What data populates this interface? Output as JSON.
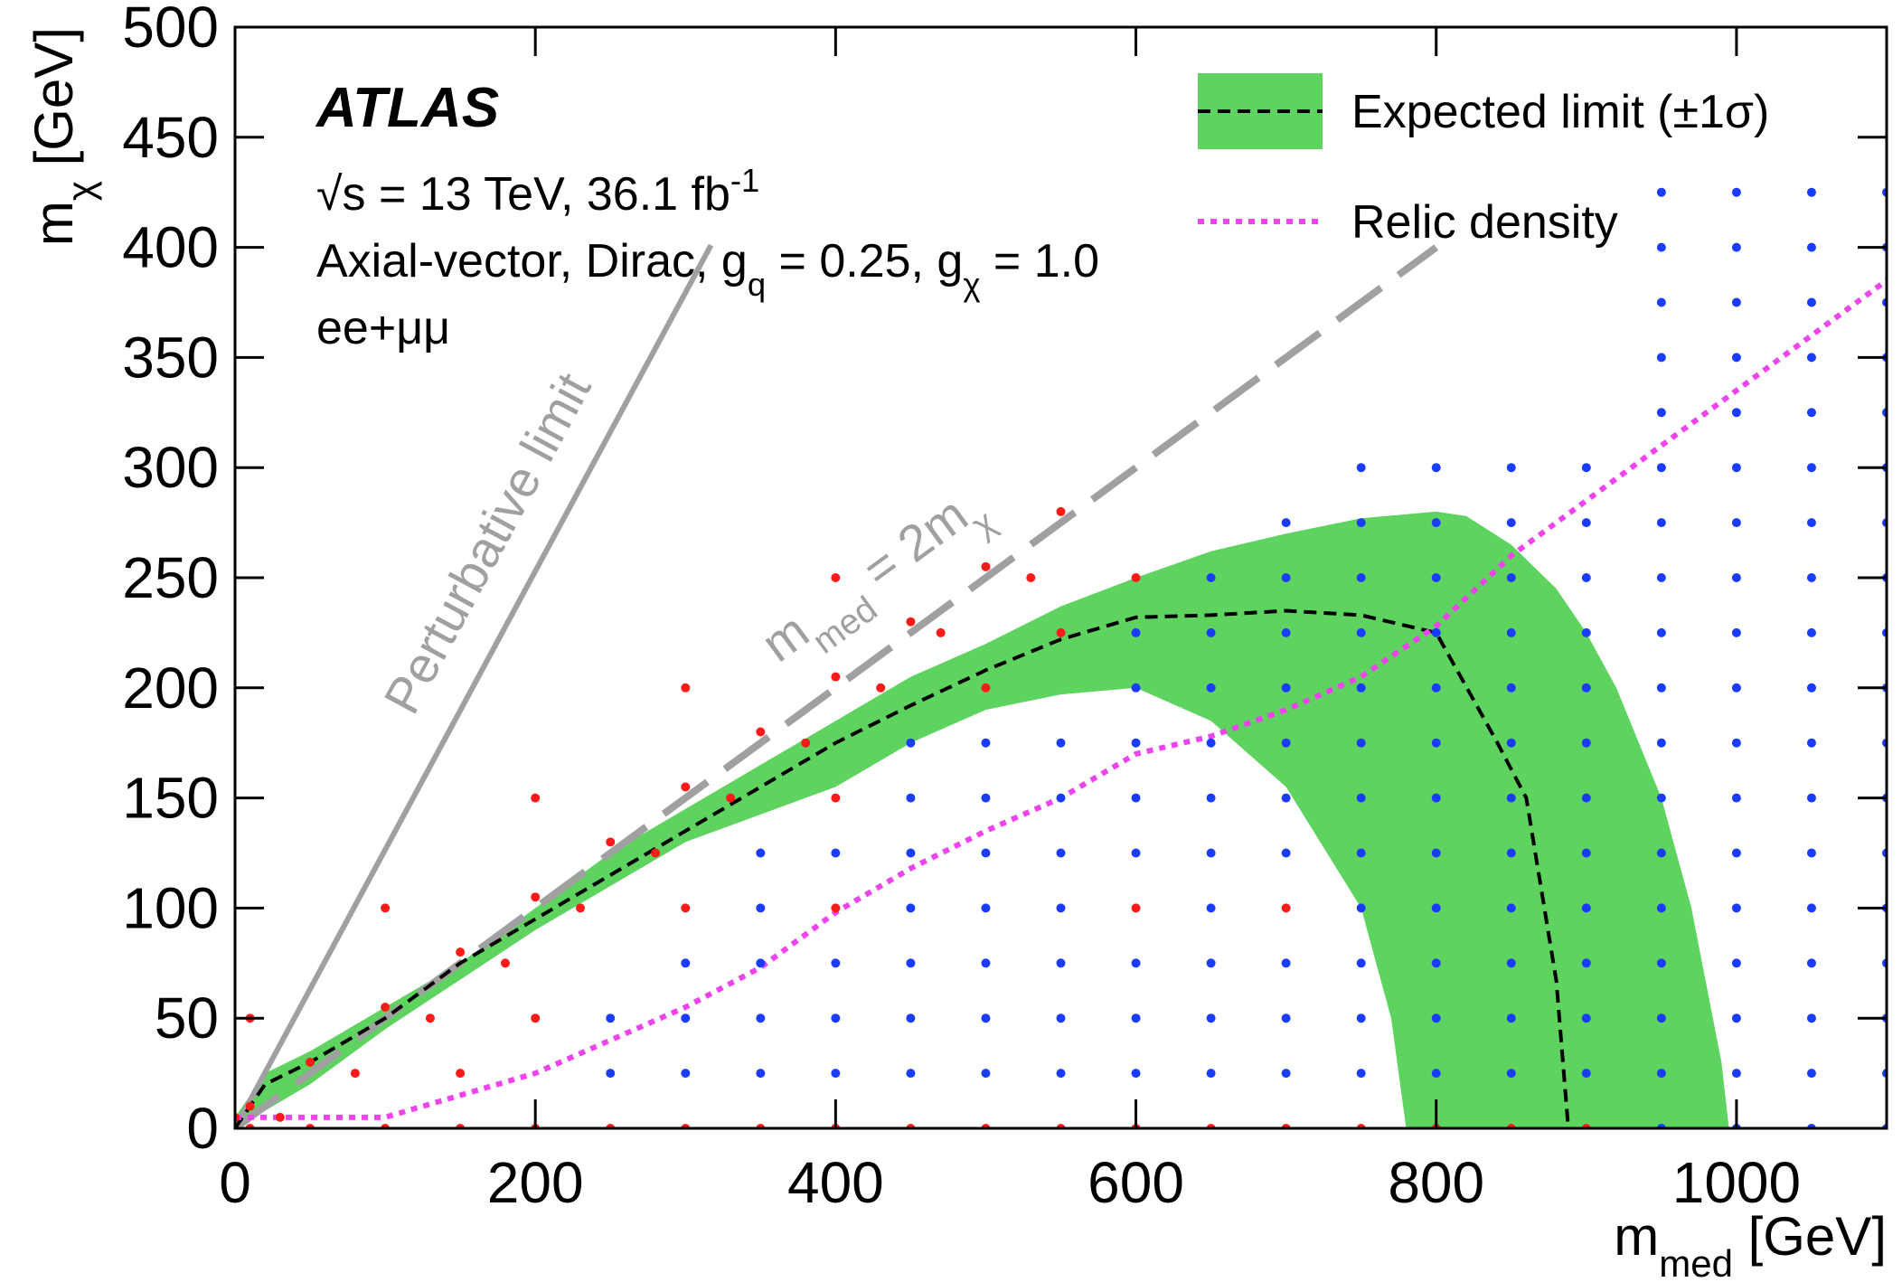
{
  "chart_data": {
    "type": "scatter",
    "x_label": [
      {
        "text": "m"
      },
      {
        "text": "med",
        "shift": "sub"
      },
      {
        "text": " [GeV]"
      }
    ],
    "y_label": [
      {
        "text": "m"
      },
      {
        "text": "χ",
        "shift": "sub"
      },
      {
        "text": " [GeV]"
      }
    ],
    "annotations": {
      "experiment": "ATLAS",
      "energy": [
        {
          "text": "√s = 13 TeV, 36.1 fb"
        },
        {
          "text": "-1",
          "shift": "super"
        }
      ],
      "model": [
        {
          "text": "Axial-vector, Dirac, g"
        },
        {
          "text": "q",
          "shift": "sub"
        },
        {
          "text": " = 0.25, g"
        },
        {
          "text": "χ",
          "shift": "sub"
        },
        {
          "text": " = 1.0"
        }
      ],
      "channel": "ee+μμ"
    },
    "xlim": [
      0,
      1100
    ],
    "xticks": [
      0,
      200,
      400,
      600,
      800,
      1000
    ],
    "ylim": [
      0,
      500
    ],
    "yticks": [
      0,
      50,
      100,
      150,
      200,
      250,
      300,
      350,
      400,
      450,
      500
    ],
    "legend": "upper right",
    "series": [
      {
        "name": "Expected limit (±1σ)",
        "type": "line",
        "style": "dashed",
        "color": "#000000",
        "x": [
          0,
          10,
          20,
          50,
          100,
          150,
          200,
          250,
          300,
          350,
          400,
          450,
          500,
          550,
          600,
          650,
          700,
          750,
          800,
          840,
          860,
          880,
          888
        ],
        "values": [
          0,
          10,
          20,
          30,
          50,
          75,
          95,
          115,
          135,
          155,
          175,
          192,
          208,
          222,
          232,
          233,
          235,
          233,
          225,
          176,
          150,
          67,
          0
        ],
        "band": {
          "color": "#5fd35f",
          "x_upper": [
            0,
            20,
            50,
            100,
            150,
            200,
            250,
            300,
            350,
            400,
            450,
            500,
            550,
            600,
            650,
            700,
            750,
            800,
            820,
            850,
            880,
            900,
            920,
            950,
            970,
            990,
            995
          ],
          "upper": [
            5,
            25,
            35,
            55,
            75,
            100,
            125,
            145,
            165,
            185,
            205,
            220,
            237,
            250,
            262,
            270,
            277,
            280,
            278,
            265,
            245,
            225,
            200,
            150,
            100,
            30,
            0
          ],
          "x_lower": [
            780,
            770,
            750,
            700,
            650,
            600,
            550,
            500,
            450,
            400,
            300,
            200,
            100,
            50,
            0
          ],
          "lower": [
            0,
            50,
            100,
            155,
            185,
            200,
            197,
            190,
            175,
            155,
            130,
            90,
            45,
            20,
            0
          ]
        }
      },
      {
        "name": "Relic density",
        "type": "line",
        "style": "dotted",
        "color": "#ee44ee",
        "x": [
          0,
          50,
          100,
          150,
          200,
          250,
          300,
          350,
          400,
          450,
          500,
          550,
          600,
          650,
          700,
          750,
          800,
          850,
          900,
          950,
          1000,
          1050,
          1100
        ],
        "values": [
          5,
          5,
          5,
          15,
          25,
          40,
          55,
          73,
          98,
          118,
          135,
          150,
          170,
          178,
          190,
          205,
          228,
          260,
          285,
          310,
          335,
          360,
          385
        ]
      },
      {
        "type": "scatter",
        "color": "#ff1a1a",
        "x": [
          0,
          10,
          10,
          10,
          30,
          50,
          50,
          80,
          100,
          100,
          100,
          130,
          150,
          150,
          150,
          180,
          200,
          200,
          200,
          200,
          230,
          250,
          250,
          280,
          300,
          300,
          300,
          300,
          330,
          350,
          350,
          380,
          400,
          400,
          400,
          400,
          400,
          430,
          450,
          450,
          470,
          500,
          500,
          500,
          530,
          550,
          550,
          550,
          600,
          600,
          600,
          650,
          700,
          700,
          750,
          800,
          850,
          900
        ],
        "values": [
          5,
          0,
          10,
          50,
          5,
          0,
          30,
          25,
          0,
          55,
          100,
          50,
          0,
          25,
          80,
          75,
          0,
          50,
          105,
          150,
          100,
          0,
          130,
          125,
          0,
          100,
          155,
          200,
          150,
          0,
          180,
          175,
          0,
          100,
          150,
          205,
          250,
          200,
          0,
          230,
          225,
          0,
          200,
          255,
          250,
          0,
          225,
          280,
          0,
          100,
          250,
          0,
          0,
          100,
          0,
          0,
          0,
          0
        ]
      },
      {
        "type": "scatter",
        "color": "#1a3cff",
        "x": [
          250,
          250,
          300,
          300,
          300,
          350,
          350,
          350,
          350,
          350,
          400,
          400,
          400,
          400,
          450,
          450,
          450,
          450,
          450,
          450,
          450,
          500,
          500,
          500,
          500,
          500,
          500,
          500,
          550,
          550,
          550,
          550,
          550,
          550,
          550,
          600,
          600,
          600,
          600,
          600,
          600,
          600,
          600,
          650,
          650,
          650,
          650,
          650,
          650,
          650,
          650,
          650,
          650,
          700,
          700,
          700,
          700,
          700,
          700,
          700,
          700,
          700,
          700,
          750,
          750,
          750,
          750,
          750,
          750,
          750,
          750,
          750,
          750,
          750,
          750,
          800,
          800,
          800,
          800,
          800,
          800,
          800,
          800,
          800,
          800,
          800,
          800,
          850,
          850,
          850,
          850,
          850,
          850,
          850,
          850,
          850,
          850,
          850,
          850,
          900,
          900,
          900,
          900,
          900,
          900,
          900,
          900,
          900,
          900,
          900,
          900,
          950,
          950,
          950,
          950,
          950,
          950,
          950,
          950,
          950,
          950,
          950,
          950,
          950,
          950,
          950,
          950,
          950,
          950,
          1000,
          1000,
          1000,
          1000,
          1000,
          1000,
          1000,
          1000,
          1000,
          1000,
          1000,
          1000,
          1000,
          1000,
          1000,
          1000,
          1000,
          1000,
          1050,
          1050,
          1050,
          1050,
          1050,
          1050,
          1050,
          1050,
          1050,
          1050,
          1050,
          1050,
          1050,
          1050,
          1050,
          1050,
          1050,
          1050,
          1100,
          1100,
          1100,
          1100,
          1100,
          1100,
          1100,
          1100,
          1100,
          1100,
          1100,
          1100,
          1100,
          1100,
          1100,
          1100,
          1100,
          1100
        ],
        "values": [
          25,
          50,
          25,
          50,
          75,
          25,
          50,
          75,
          100,
          125,
          25,
          50,
          75,
          125,
          25,
          50,
          75,
          100,
          125,
          150,
          175,
          25,
          50,
          75,
          100,
          125,
          150,
          175,
          25,
          50,
          75,
          100,
          125,
          150,
          175,
          25,
          50,
          75,
          125,
          150,
          175,
          200,
          225,
          25,
          50,
          75,
          100,
          125,
          150,
          175,
          200,
          225,
          250,
          25,
          50,
          75,
          125,
          150,
          175,
          200,
          225,
          250,
          275,
          25,
          50,
          75,
          100,
          125,
          150,
          175,
          200,
          225,
          250,
          275,
          300,
          25,
          50,
          75,
          100,
          125,
          150,
          175,
          200,
          225,
          250,
          275,
          300,
          25,
          50,
          75,
          100,
          125,
          150,
          175,
          200,
          225,
          250,
          275,
          300,
          25,
          50,
          75,
          100,
          125,
          150,
          175,
          200,
          225,
          250,
          275,
          300,
          0,
          25,
          50,
          75,
          100,
          125,
          150,
          175,
          200,
          225,
          250,
          275,
          300,
          325,
          350,
          375,
          400,
          425,
          0,
          25,
          50,
          75,
          100,
          125,
          150,
          175,
          200,
          225,
          250,
          275,
          300,
          325,
          350,
          375,
          400,
          425,
          0,
          25,
          50,
          75,
          100,
          125,
          150,
          175,
          200,
          225,
          250,
          275,
          300,
          325,
          350,
          375,
          400,
          425,
          0,
          25,
          50,
          75,
          100,
          125,
          150,
          175,
          200,
          225,
          250,
          275,
          300,
          325,
          350,
          375,
          400,
          425
        ]
      }
    ],
    "reference_lines": [
      {
        "label": [
          {
            "text": "Perturbative limit"
          }
        ],
        "style": "solid",
        "color": "#a0a0a0",
        "x": [
          0,
          317
        ],
        "values": [
          0,
          401
        ]
      },
      {
        "label": [
          {
            "text": "m"
          },
          {
            "text": "med",
            "shift": "sub"
          },
          {
            "text": " = 2m"
          },
          {
            "text": "χ",
            "shift": "sub"
          }
        ],
        "style": "dashed",
        "color": "#a0a0a0",
        "x": [
          0,
          800
        ],
        "values": [
          0,
          400
        ]
      }
    ]
  }
}
